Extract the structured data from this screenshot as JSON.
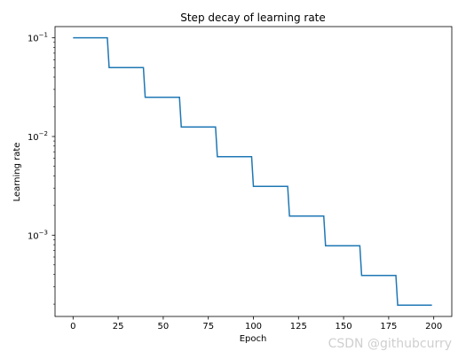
{
  "chart_data": {
    "type": "line",
    "title": "Step decay of learning rate",
    "xlabel": "Epoch",
    "ylabel": "Learning rate",
    "yscale": "log",
    "xlim": [
      -10,
      210
    ],
    "ylim": [
      0.00015,
      0.13
    ],
    "grid": false,
    "xticks": [
      0,
      25,
      50,
      75,
      100,
      125,
      150,
      175,
      200
    ],
    "yticks": [
      {
        "value": 0.1,
        "base": "10",
        "exp": "−1"
      },
      {
        "value": 0.01,
        "base": "10",
        "exp": "−2"
      },
      {
        "value": 0.001,
        "base": "10",
        "exp": "−3"
      }
    ],
    "series": [
      {
        "color": "#1f77b4",
        "step_size": 20,
        "x": [
          0,
          20,
          40,
          60,
          80,
          100,
          120,
          140,
          160,
          180,
          199
        ],
        "y": [
          0.1,
          0.05,
          0.025,
          0.0125,
          0.00625,
          0.003125,
          0.0015625,
          0.00078125,
          0.000390625,
          0.0001953125,
          0.0001953125
        ]
      }
    ]
  },
  "watermark": "CSDN @githubcurry"
}
